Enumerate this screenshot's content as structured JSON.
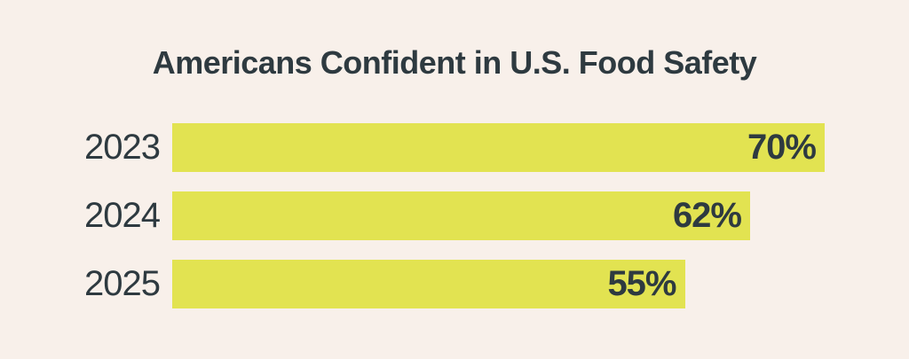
{
  "chart_data": {
    "type": "bar",
    "orientation": "horizontal",
    "title": "Americans Confident in U.S. Food Safety",
    "categories": [
      "2023",
      "2024",
      "2025"
    ],
    "values": [
      70,
      62,
      55
    ],
    "value_labels": [
      "70%",
      "62%",
      "55%"
    ],
    "xlim": [
      0,
      100
    ],
    "grid": false,
    "legend": false,
    "colors": {
      "background": "#f8f0ea",
      "bar": "#e2e351",
      "text": "#2e3a40"
    }
  }
}
